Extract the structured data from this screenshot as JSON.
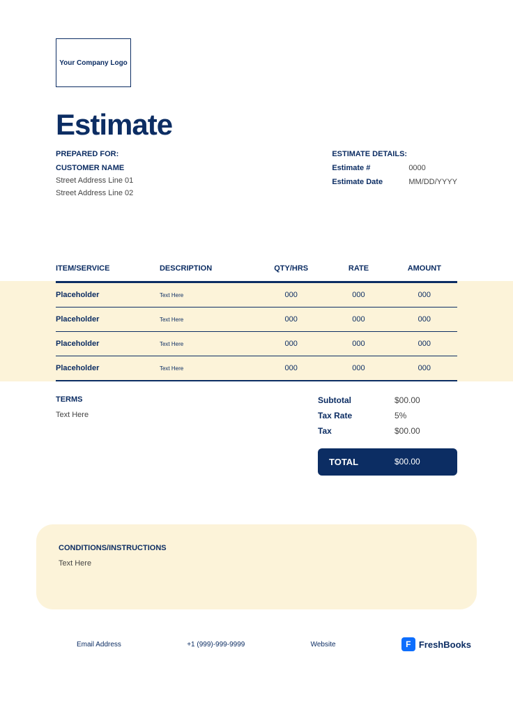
{
  "logo": {
    "text": "Your Company Logo"
  },
  "title": "Estimate",
  "prepared_for": {
    "label": "PREPARED FOR:",
    "customer_name": "CUSTOMER NAME",
    "address_line_1": "Street Address Line 01",
    "address_line_2": "Street Address Line 02"
  },
  "estimate_details": {
    "label": "ESTIMATE DETAILS:",
    "number_label": "Estimate #",
    "number_value": "0000",
    "date_label": "Estimate Date",
    "date_value": "MM/DD/YYYY"
  },
  "table": {
    "headers": {
      "item": "ITEM/SERVICE",
      "description": "DESCRIPTION",
      "qty": "QTY/HRS",
      "rate": "RATE",
      "amount": "AMOUNT"
    },
    "rows": [
      {
        "item": "Placeholder",
        "description": "Text Here",
        "qty": "000",
        "rate": "000",
        "amount": "000"
      },
      {
        "item": "Placeholder",
        "description": "Text Here",
        "qty": "000",
        "rate": "000",
        "amount": "000"
      },
      {
        "item": "Placeholder",
        "description": "Text Here",
        "qty": "000",
        "rate": "000",
        "amount": "000"
      },
      {
        "item": "Placeholder",
        "description": "Text Here",
        "qty": "000",
        "rate": "000",
        "amount": "000"
      }
    ]
  },
  "terms": {
    "label": "TERMS",
    "text": "Text Here"
  },
  "totals": {
    "subtotal_label": "Subtotal",
    "subtotal_value": "$00.00",
    "taxrate_label": "Tax Rate",
    "taxrate_value": "5%",
    "tax_label": "Tax",
    "tax_value": "$00.00",
    "total_label": "TOTAL",
    "total_value": "$00.00"
  },
  "conditions": {
    "label": "CONDITIONS/INSTRUCTIONS",
    "text": "Text Here"
  },
  "footer": {
    "email": "Email Address",
    "phone": "+1 (999)-999-9999",
    "website": "Website",
    "brand": "FreshBooks",
    "brand_icon": "F"
  },
  "colors": {
    "primary": "#0c2d63",
    "band": "#fcf3d9",
    "fb_blue": "#0d6efd",
    "white": "#ffffff",
    "text_muted": "#444444"
  }
}
